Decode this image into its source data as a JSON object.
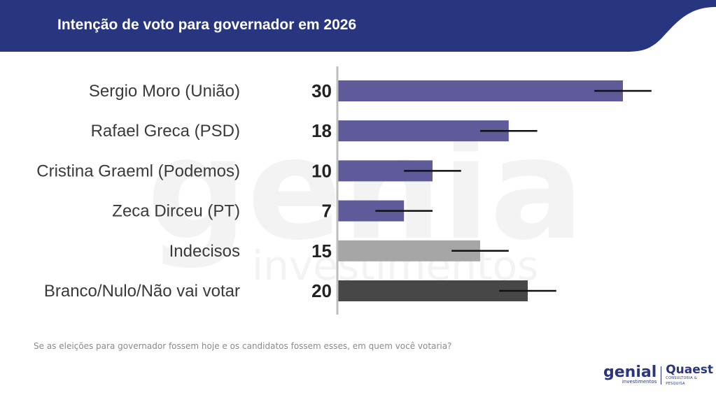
{
  "header": {
    "title": "Intenção de voto para governador em 2026",
    "color": "#28357f"
  },
  "chart_data": {
    "type": "bar",
    "orientation": "horizontal",
    "title": "Intenção de voto para governador em 2026",
    "categories": [
      "Sergio Moro (União)",
      "Rafael Greca (PSD)",
      "Cristina Graeml (Podemos)",
      "Zeca Dirceu (PT)",
      "Indecisos",
      "Branco/Nulo/Não vai votar"
    ],
    "values": [
      30,
      18,
      10,
      7,
      15,
      20
    ],
    "colors": [
      "#5f5a9a",
      "#5f5a9a",
      "#5f5a9a",
      "#5f5a9a",
      "#a6a6a6",
      "#474747"
    ],
    "error_margin": 3,
    "xlim": [
      0,
      35
    ],
    "xlabel": "",
    "ylabel": "",
    "grid": false
  },
  "footer": {
    "question": "Se as eleições para governador fossem hoje e os candidatos fossem esses, em quem você votaria?"
  },
  "logos": {
    "genial": "genial",
    "genial_sub": "investimentos",
    "quaest": "Quaest",
    "quaest_sub": "CONSULTORIA & PESQUISA"
  },
  "watermark": {
    "word": "genial",
    "sub": "investimentos"
  }
}
